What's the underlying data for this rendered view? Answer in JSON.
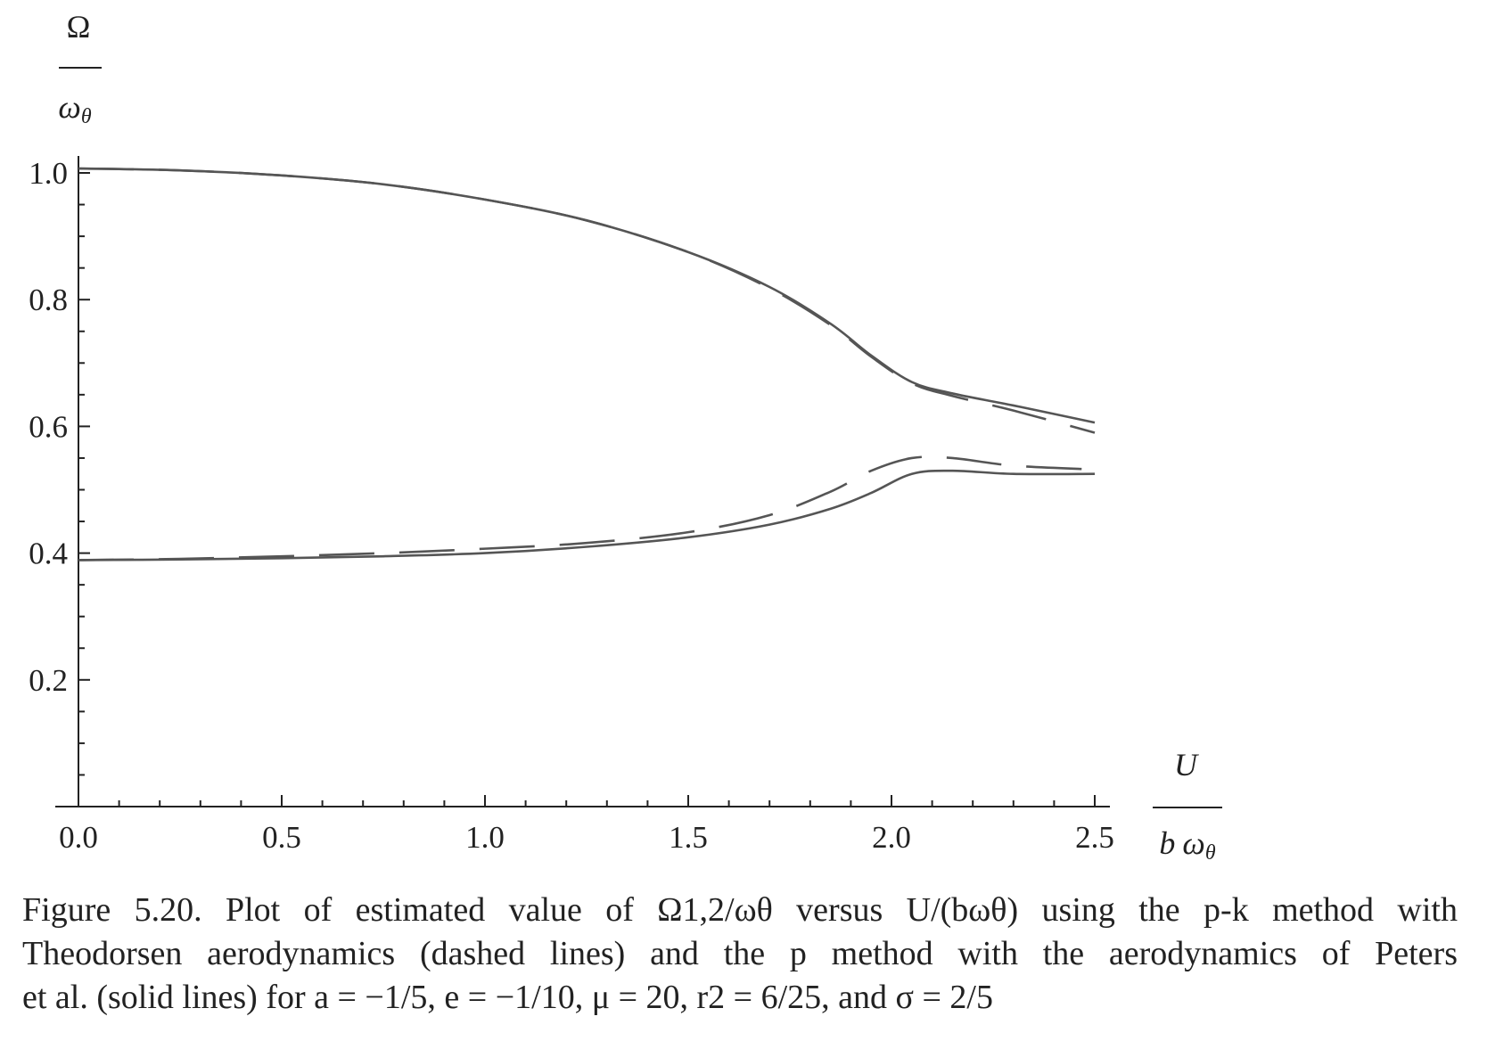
{
  "chart_data": {
    "type": "line",
    "ylabel": {
      "numerator": "Ω",
      "denominator_main": "ω",
      "denominator_sub": "θ"
    },
    "xlabel": {
      "numerator": "U",
      "denominator_pre": "b",
      "denominator_main": "ω",
      "denominator_sub": "θ"
    },
    "xlim": [
      0.0,
      2.5
    ],
    "ylim": [
      0.0,
      1.0
    ],
    "x_ticks": [
      0.0,
      0.5,
      1.0,
      1.5,
      2.0,
      2.5
    ],
    "x_tick_labels": [
      "0.0",
      "0.5",
      "1.0",
      "1.5",
      "2.0",
      "2.5"
    ],
    "x_minor_step": 0.1,
    "y_ticks": [
      0.2,
      0.4,
      0.6,
      0.8,
      1.0
    ],
    "y_tick_labels": [
      "0.2",
      "0.4",
      "0.6",
      "0.8",
      "1.0"
    ],
    "y_minor_step": 0.05,
    "grid": false,
    "line_color": "#555555",
    "series": [
      {
        "style": "solid",
        "x": [
          0.0,
          0.25,
          0.5,
          0.75,
          1.0,
          1.25,
          1.5,
          1.7,
          1.85,
          1.95,
          2.05,
          2.15,
          2.3,
          2.5
        ],
        "y": [
          1.007,
          1.004,
          0.996,
          0.982,
          0.958,
          0.925,
          0.875,
          0.82,
          0.762,
          0.712,
          0.67,
          0.652,
          0.633,
          0.606
        ]
      },
      {
        "style": "solid",
        "x": [
          0.0,
          0.25,
          0.5,
          0.75,
          1.0,
          1.25,
          1.5,
          1.7,
          1.85,
          1.95,
          2.05,
          2.15,
          2.3,
          2.5
        ],
        "y": [
          0.389,
          0.39,
          0.392,
          0.395,
          0.4,
          0.41,
          0.425,
          0.445,
          0.47,
          0.495,
          0.525,
          0.53,
          0.525,
          0.525
        ]
      },
      {
        "style": "dashed",
        "x": [
          0.0,
          0.25,
          0.5,
          0.75,
          1.0,
          1.25,
          1.5,
          1.7,
          1.85,
          1.95,
          2.05,
          2.15,
          2.3,
          2.5
        ],
        "y": [
          1.007,
          1.004,
          0.996,
          0.982,
          0.958,
          0.925,
          0.875,
          0.818,
          0.76,
          0.71,
          0.668,
          0.648,
          0.625,
          0.59
        ]
      },
      {
        "style": "dashed",
        "x": [
          0.0,
          0.25,
          0.5,
          0.75,
          1.0,
          1.25,
          1.5,
          1.7,
          1.85,
          1.95,
          2.05,
          2.15,
          2.3,
          2.5
        ],
        "y": [
          0.389,
          0.391,
          0.395,
          0.4,
          0.407,
          0.416,
          0.433,
          0.46,
          0.497,
          0.53,
          0.55,
          0.55,
          0.538,
          0.532
        ]
      }
    ]
  },
  "caption": {
    "lines": [
      "Figure 5.20. Plot of estimated value of Ω1,2/ωθ versus U/(bωθ) using the p-k method with",
      "Theodorsen aerodynamics (dashed lines) and the p method with the aerodynamics of Peters",
      "et al. (solid lines) for a = −1/5, e = −1/10, μ = 20, r2 = 6/25, and σ = 2/5"
    ]
  }
}
